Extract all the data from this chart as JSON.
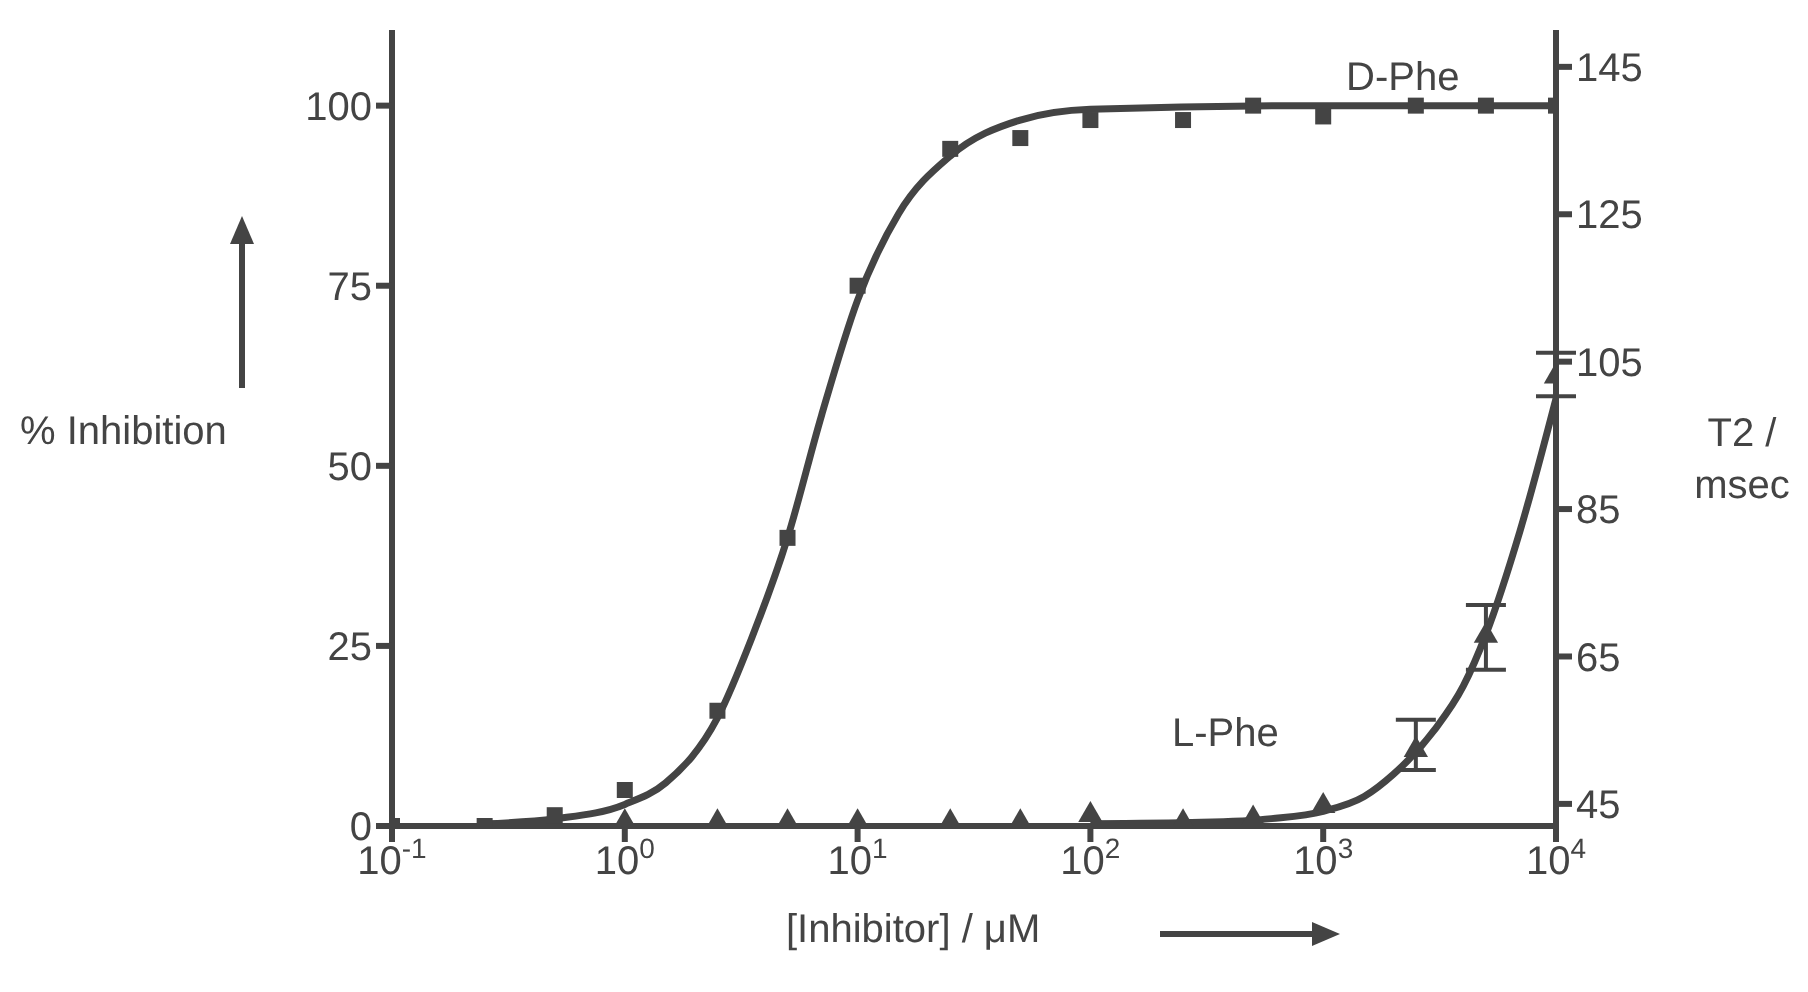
{
  "chart_data": {
    "type": "scatter",
    "xlabel": "[Inhibitor] / μM",
    "ylabel": "% Inhibition",
    "y2label": "T2 / msec",
    "annotations": [
      "D-Phe",
      "L-Phe"
    ],
    "log": "x",
    "xlim": [
      0.1,
      10000
    ],
    "xticks": [
      {
        "value": 0.1,
        "label": "10$^{-1}$"
      },
      {
        "value": 1,
        "label": "10$^{0}$"
      },
      {
        "value": 10,
        "label": "10$^{1}$"
      },
      {
        "value": 100,
        "label": "10$^{2}$"
      },
      {
        "value": 1000,
        "label": "10$^{3}$"
      },
      {
        "value": 10000,
        "label": "10$^{4}$"
      }
    ],
    "ylim": [
      0,
      110.5
    ],
    "yticks": [
      0,
      25,
      50,
      75,
      100
    ],
    "y2lim": [
      42,
      150
    ],
    "y2ticks": [
      45,
      65,
      85,
      105,
      125,
      145
    ],
    "series": [
      {
        "marker": "square",
        "color": "#444444",
        "x": [
          0.1,
          0.25,
          0.5,
          1,
          2.5,
          5,
          10,
          25,
          50,
          100,
          250,
          500,
          1000,
          2500,
          5000,
          10000
        ],
        "values": [
          0,
          0,
          1.5,
          5,
          16,
          40,
          75,
          94,
          95.5,
          98,
          98,
          100,
          98.5,
          100,
          100,
          100
        ]
      },
      {
        "type": "line",
        "marker": "none",
        "color": "#444444",
        "x": [
          0.25,
          0.5,
          1,
          1.5,
          2.5,
          3.5,
          5,
          7,
          10,
          15,
          25,
          50,
          100,
          1000,
          10000
        ],
        "values": [
          0.3,
          1,
          3,
          6,
          15,
          26,
          40,
          57,
          73,
          85,
          93,
          98,
          99.5,
          100,
          100
        ]
      },
      {
        "axis": "y2",
        "marker": "triangle",
        "color": "#444444",
        "x": [
          1,
          2.5,
          5,
          10,
          25,
          50,
          100,
          250,
          500,
          1000,
          2500,
          5000,
          10000
        ],
        "values": [
          42.5,
          42.5,
          42.5,
          42.5,
          42.5,
          42.5,
          43.5,
          42.5,
          43,
          44.7,
          52.3,
          67.8,
          103
        ],
        "errors": [
          null,
          null,
          null,
          null,
          null,
          null,
          null,
          null,
          null,
          null,
          [
            49.6,
            56.4
          ],
          [
            63.2,
            72
          ],
          [
            100.3,
            106.2
          ]
        ]
      },
      {
        "type": "line",
        "axis": "y2",
        "marker": "none",
        "color": "#444444",
        "x": [
          100,
          300,
          600,
          1000,
          1500,
          2000,
          3000,
          4000,
          5000,
          7000,
          10000
        ],
        "values": [
          42.3,
          42.5,
          43,
          44,
          46,
          49,
          55,
          61,
          68,
          82,
          100
        ]
      }
    ]
  }
}
